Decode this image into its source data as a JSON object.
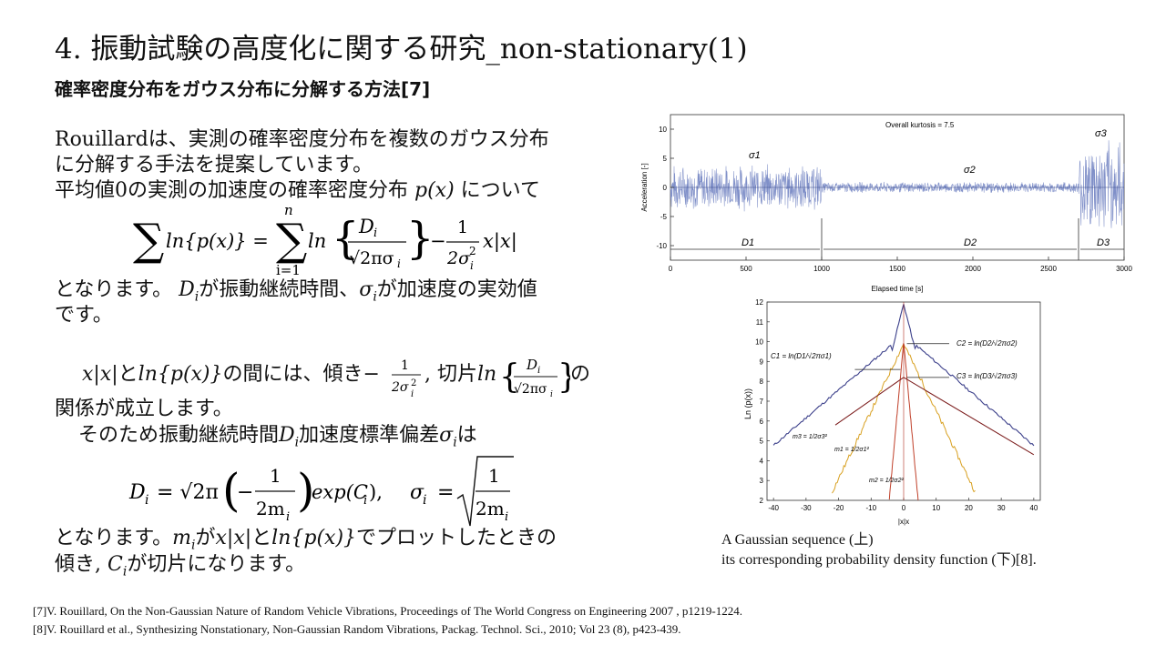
{
  "slide": {
    "title": "4. 振動試験の高度化に関する研究_non-stationary(1)",
    "subtitle": "確率密度分布をガウス分布に分解する方法[7]",
    "para1": [
      "Rouillardは、実測の確率密度分布を複数のガウス分布",
      "に分解する手法を提案しています。",
      "平均値0の実測の加速度の確率密度分布"
    ],
    "para1_tail": "について",
    "px_symbol": "p(x)",
    "eq1": {
      "sum_sym": "∑",
      "lhs": "ln{p(x)} =",
      "upper": "n",
      "lower": "i=1",
      "ln": "ln",
      "num": "D",
      "num_sub": "i",
      "den": "√2πσ",
      "den_sub": "i",
      "minus": "−",
      "frac2_num": "1",
      "frac2_den": "2σ",
      "frac2_den_sub": "i",
      "frac2_den_sup": "2",
      "tail": "x|x|"
    },
    "line_after_eq1_a": "となります。",
    "line_after_eq1_b": "が振動継続時間、",
    "line_after_eq1_c": "が加速度の実効値",
    "sym_D": "D",
    "sym_sigma": "σ",
    "sym_i": "i",
    "line_desu": "です。",
    "para2_a": "x|x|",
    "para2_b": "と",
    "para2_c": "ln{p(x)}",
    "para2_d": "の間には、傾き",
    "para2_e": "−",
    "para2_f": ", 切片",
    "para2_g": "ln",
    "para2_h": "の",
    "para2_line2": "関係が成立します。",
    "para3_a": "そのため振動継続時間",
    "para3_b": "加速度標準偏差",
    "para3_c": "は",
    "eq2": {
      "lhs": "D",
      "lhs_sub": "i",
      "eq": "= √2π",
      "frac_num": "1",
      "frac_den": "2m",
      "frac_den_sub": "i",
      "minus": "−",
      "exp": "exp(C",
      "exp_sub": "i",
      "exp_end": "),",
      "sigma": "σ",
      "sigma_sub": "i",
      "eq2": "="
    },
    "para4_a": "となります。",
    "para4_b": "が",
    "para4_c": "と",
    "para4_d": "でプロットしたときの",
    "sym_m": "m",
    "para4_line2_a": "傾き, ",
    "para4_line2_b": "が切片になります。",
    "sym_C": "C"
  },
  "figure_top": {
    "annotation": "Overall kurtosis = 7.5",
    "ylabel": "Acceleration [-]",
    "xlabel": "Elapsed time [s]",
    "yticks": [
      "10",
      "5",
      "0",
      "-5",
      "-10"
    ],
    "xticks": [
      "0",
      "500",
      "1000",
      "1500",
      "2000",
      "2500",
      "3000"
    ],
    "sigma_labels": [
      "σ1",
      "σ2",
      "σ3"
    ],
    "d_labels": [
      "D1",
      "D2",
      "D3"
    ],
    "color": "#7f8fc8"
  },
  "figure_bottom": {
    "ylabel": "Ln (p(x))",
    "xlabel": "|x|x",
    "yticks": [
      "12",
      "11",
      "10",
      "9",
      "8",
      "7",
      "6",
      "5",
      "4",
      "3",
      "2"
    ],
    "xticks": [
      "-40",
      "-30",
      "-20",
      "-10",
      "0",
      "10",
      "20",
      "30",
      "40"
    ],
    "label_c1": "C1 = ln(D1/√2πσ1)",
    "label_c2": "C2 = ln(D2/√2πσ2)",
    "label_c3": "C3 = ln(D3/√2πσ3)",
    "label_m1": "m1 = 1/2σ1²",
    "label_m2": "m2 = 1/2σ2²",
    "label_m3": "m3 = 1/2σ3²",
    "colors": {
      "envelope": "#3b3f8a",
      "c1": "#d8a020",
      "c2": "#c0402a",
      "c3": "#7a1a1a"
    }
  },
  "caption": {
    "line1": "A Gaussian sequence (上)",
    "line2": "its corresponding probability density function (下)[8]."
  },
  "references": [
    "[7]V. Rouillard,  On the Non-Gaussian  Nature of Random Vehicle  Vibrations,  Proceedings  of The World Congress on Engineering  2007 , p1219-1224.",
    "[8]V. Rouillard  et al., Synthesizing  Nonstationary,  Non-Gaussian Random Vibrations,  Packag. Technol.  Sci., 2010; Vol 23 (8), p423-439."
  ]
}
